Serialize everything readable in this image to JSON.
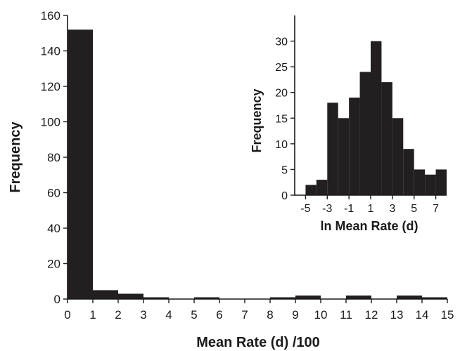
{
  "colors": {
    "bar": "#231f20",
    "axis": "#1a1a1a",
    "background": "#ffffff"
  },
  "chart_data": [
    {
      "id": "main",
      "type": "bar",
      "histogram": true,
      "xlabel": "Mean Rate (d) /100",
      "ylabel": "Frequency",
      "xlim": [
        0,
        15
      ],
      "ylim": [
        0,
        160
      ],
      "xticks": [
        "0",
        "1",
        "2",
        "3",
        "4",
        "5",
        "6",
        "7",
        "8",
        "9",
        "10",
        "11",
        "12",
        "13",
        "14",
        "15"
      ],
      "yticks": [
        "0",
        "20",
        "40",
        "60",
        "80",
        "100",
        "120",
        "140",
        "160"
      ],
      "bins": [
        {
          "x0": 0,
          "x1": 1,
          "value": 152
        },
        {
          "x0": 1,
          "x1": 2,
          "value": 5
        },
        {
          "x0": 2,
          "x1": 3,
          "value": 3
        },
        {
          "x0": 3,
          "x1": 4,
          "value": 1
        },
        {
          "x0": 4,
          "x1": 5,
          "value": 0
        },
        {
          "x0": 5,
          "x1": 6,
          "value": 1
        },
        {
          "x0": 6,
          "x1": 7,
          "value": 0
        },
        {
          "x0": 7,
          "x1": 8,
          "value": 0
        },
        {
          "x0": 8,
          "x1": 9,
          "value": 1
        },
        {
          "x0": 9,
          "x1": 10,
          "value": 2
        },
        {
          "x0": 10,
          "x1": 11,
          "value": 0
        },
        {
          "x0": 11,
          "x1": 12,
          "value": 2
        },
        {
          "x0": 12,
          "x1": 13,
          "value": 0
        },
        {
          "x0": 13,
          "x1": 14,
          "value": 2
        },
        {
          "x0": 14,
          "x1": 15,
          "value": 1
        }
      ]
    },
    {
      "id": "inset",
      "type": "bar",
      "histogram": true,
      "xlabel": "ln Mean Rate (d)",
      "ylabel": "Frequency",
      "xlim": [
        -6,
        8
      ],
      "ylim": [
        0,
        35
      ],
      "xticks": [
        {
          "value": -5,
          "label": "-5"
        },
        {
          "value": -3,
          "label": "-3"
        },
        {
          "value": -1,
          "label": "-1"
        },
        {
          "value": 1,
          "label": "1"
        },
        {
          "value": 3,
          "label": "3"
        },
        {
          "value": 5,
          "label": "5"
        },
        {
          "value": 7,
          "label": "7"
        }
      ],
      "yticks": [
        "0",
        "5",
        "10",
        "15",
        "20",
        "25",
        "30"
      ],
      "bins": [
        {
          "x0": -5,
          "x1": -4,
          "value": 2
        },
        {
          "x0": -4,
          "x1": -3,
          "value": 3
        },
        {
          "x0": -3,
          "x1": -2,
          "value": 18
        },
        {
          "x0": -2,
          "x1": -1,
          "value": 15
        },
        {
          "x0": -1,
          "x1": 0,
          "value": 19
        },
        {
          "x0": 0,
          "x1": 1,
          "value": 24
        },
        {
          "x0": 1,
          "x1": 2,
          "value": 30
        },
        {
          "x0": 2,
          "x1": 3,
          "value": 22
        },
        {
          "x0": 3,
          "x1": 4,
          "value": 15
        },
        {
          "x0": 4,
          "x1": 5,
          "value": 9
        },
        {
          "x0": 5,
          "x1": 6,
          "value": 5
        },
        {
          "x0": 6,
          "x1": 7,
          "value": 4
        },
        {
          "x0": 7,
          "x1": 8,
          "value": 5
        }
      ]
    }
  ]
}
